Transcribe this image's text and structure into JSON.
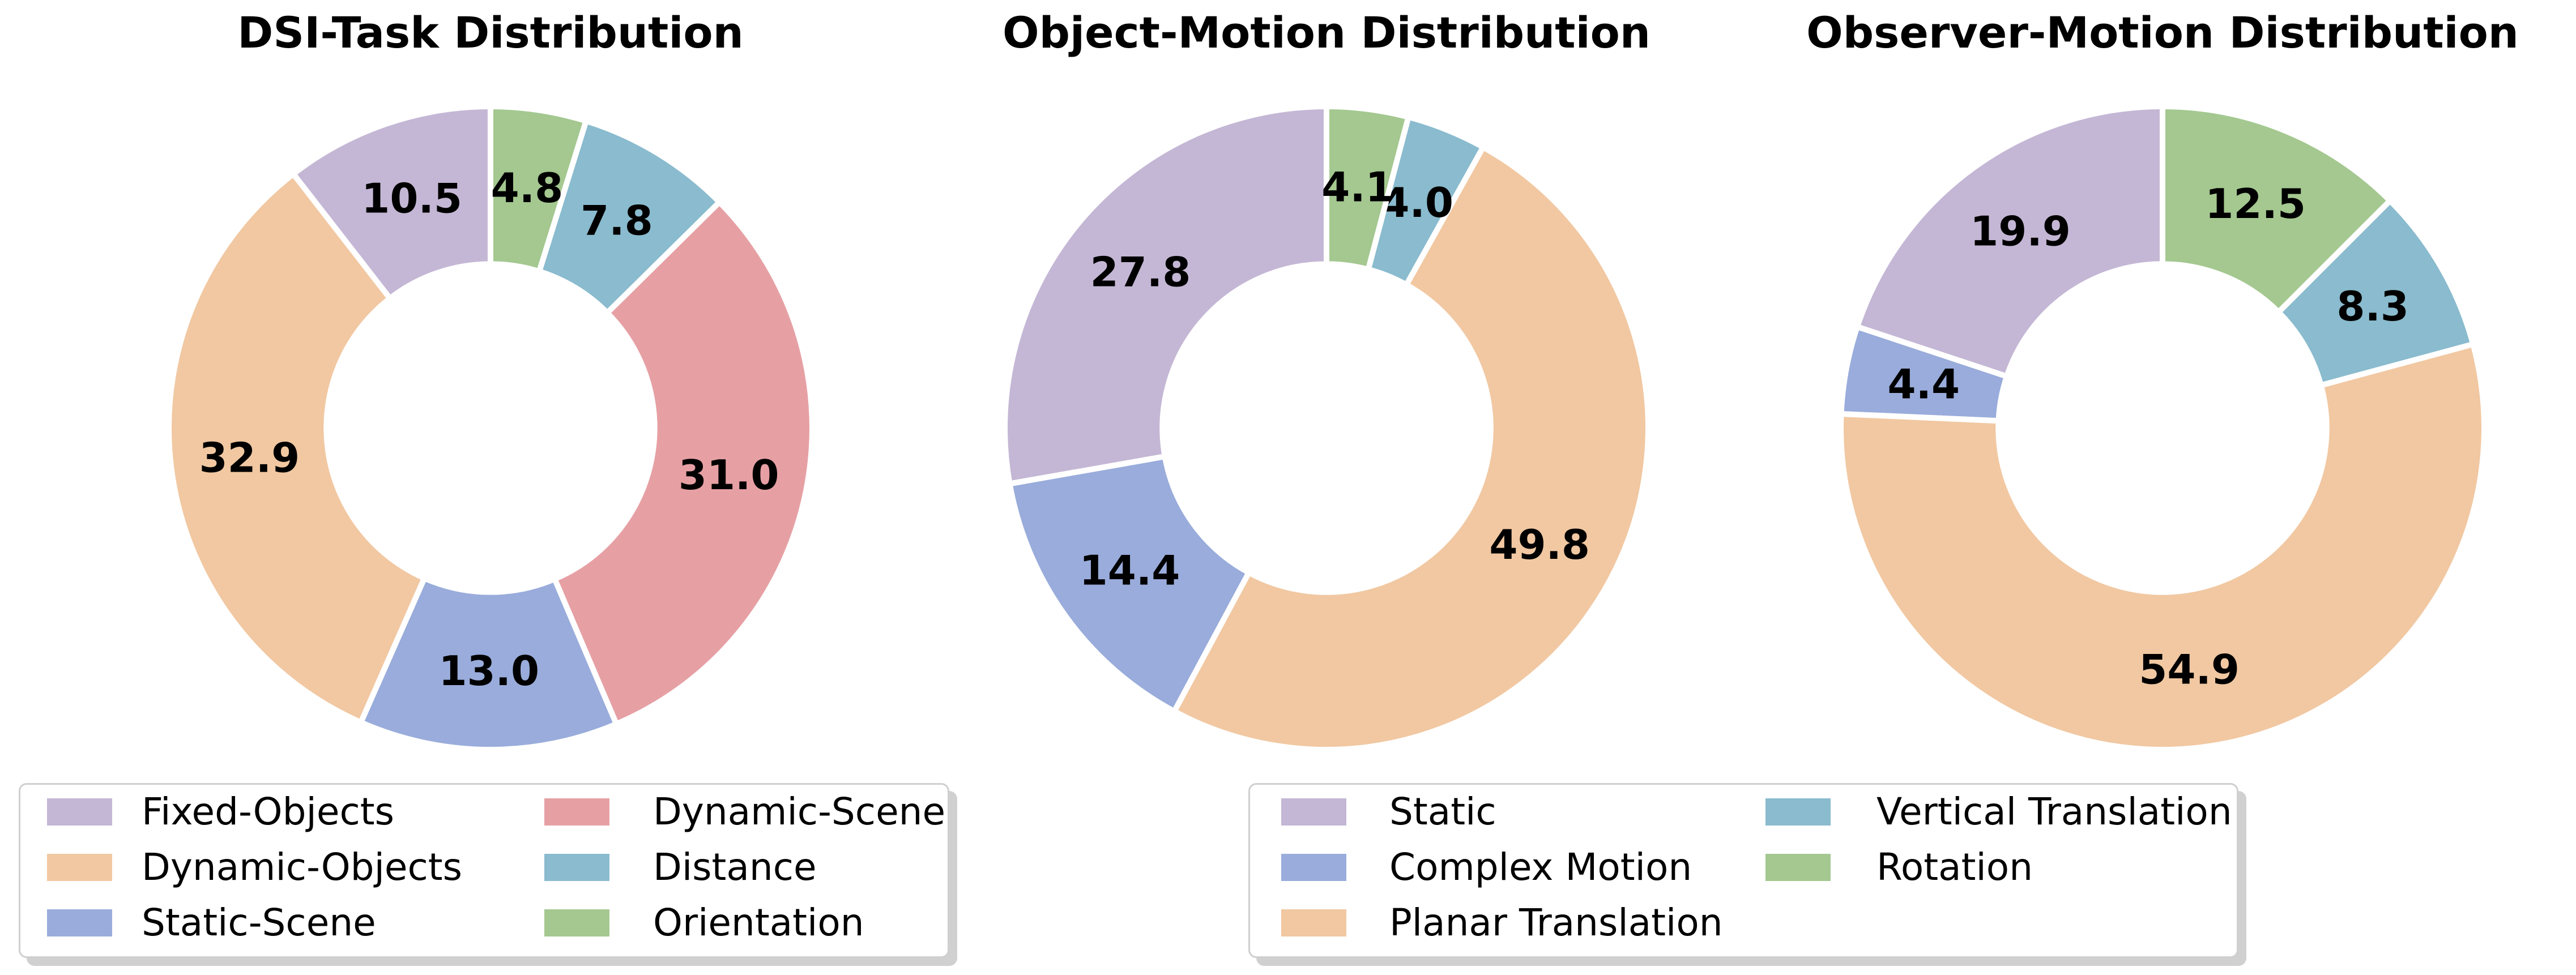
{
  "figure": {
    "background": "#FFFFFF"
  },
  "palette": {
    "lavender": "#C4B7D5",
    "peach": "#F1C8A2",
    "blue": "#99ACDB",
    "pink": "#E6A0A4",
    "teal": "#8ABBCE",
    "green": "#A4C890"
  },
  "chart_data": [
    {
      "type": "pie",
      "subtype": "donut",
      "title": "DSI-Task Distribution",
      "start_angle_deg": 90,
      "direction": "counterclockwise",
      "donut_hole_ratio": 0.51,
      "label_distance_ratio": 0.755,
      "value_label_format": "one-decimal",
      "slices": [
        {
          "label": "Fixed-Objects",
          "value": 10.5,
          "color": "#C4B7D5"
        },
        {
          "label": "Dynamic-Objects",
          "value": 32.9,
          "color": "#F1C8A2"
        },
        {
          "label": "Static-Scene",
          "value": 13.0,
          "color": "#99ACDB"
        },
        {
          "label": "Dynamic-Scene",
          "value": 31.0,
          "color": "#E6A0A4"
        },
        {
          "label": "Distance",
          "value": 7.8,
          "color": "#8ABBCE"
        },
        {
          "label": "Orientation",
          "value": 4.8,
          "color": "#A4C890"
        }
      ]
    },
    {
      "type": "pie",
      "subtype": "donut",
      "title": "Object-Motion Distribution",
      "start_angle_deg": 90,
      "direction": "counterclockwise",
      "donut_hole_ratio": 0.51,
      "label_distance_ratio": 0.755,
      "value_label_format": "one-decimal",
      "slices": [
        {
          "label": "Static",
          "value": 27.8,
          "color": "#C4B7D5"
        },
        {
          "label": "Complex Motion",
          "value": 14.4,
          "color": "#99ACDB"
        },
        {
          "label": "Planar Translation",
          "value": 49.8,
          "color": "#F1C8A2"
        },
        {
          "label": "Vertical Translation",
          "value": 4.0,
          "color": "#8ABBCE"
        },
        {
          "label": "Rotation",
          "value": 4.1,
          "color": "#A4C890"
        }
      ]
    },
    {
      "type": "pie",
      "subtype": "donut",
      "title": "Observer-Motion Distribution",
      "start_angle_deg": 90,
      "direction": "counterclockwise",
      "donut_hole_ratio": 0.51,
      "label_distance_ratio": 0.755,
      "value_label_format": "one-decimal",
      "slices": [
        {
          "label": "Static",
          "value": 19.9,
          "color": "#C4B7D5"
        },
        {
          "label": "Complex Motion",
          "value": 4.4,
          "color": "#99ACDB"
        },
        {
          "label": "Planar Translation",
          "value": 54.9,
          "color": "#F1C8A2"
        },
        {
          "label": "Vertical Translation",
          "value": 8.3,
          "color": "#8ABBCE"
        },
        {
          "label": "Rotation",
          "value": 12.5,
          "color": "#A4C890"
        }
      ]
    }
  ],
  "legends": [
    {
      "items": [
        {
          "label": "Fixed-Objects",
          "color": "#C4B7D5"
        },
        {
          "label": "Dynamic-Objects",
          "color": "#F1C8A2"
        },
        {
          "label": "Static-Scene",
          "color": "#99ACDB"
        },
        {
          "label": "Dynamic-Scene",
          "color": "#E6A0A4"
        },
        {
          "label": "Distance",
          "color": "#8ABBCE"
        },
        {
          "label": "Orientation",
          "color": "#A4C890"
        }
      ]
    },
    {
      "items": [
        {
          "label": "Static",
          "color": "#C4B7D5"
        },
        {
          "label": "Complex Motion",
          "color": "#99ACDB"
        },
        {
          "label": "Planar Translation",
          "color": "#F1C8A2"
        },
        {
          "label": "Vertical Translation",
          "color": "#8ABBCE"
        },
        {
          "label": "Rotation",
          "color": "#A4C890"
        }
      ]
    }
  ]
}
